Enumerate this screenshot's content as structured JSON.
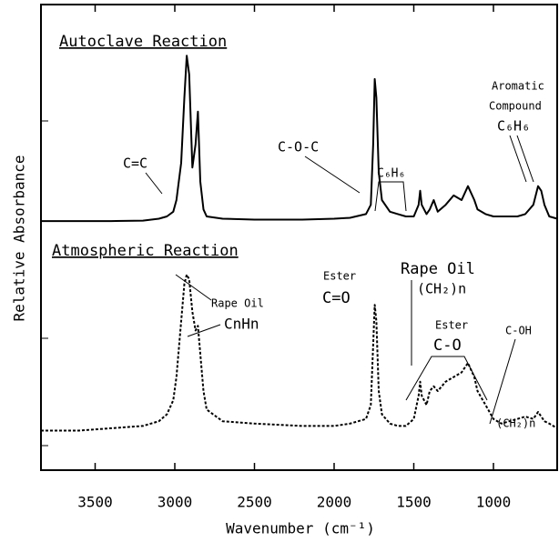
{
  "chart_data": {
    "type": "line",
    "xlabel": "Wavenumber (cm⁻¹)",
    "ylabel": "Relative Absorbance",
    "xlim": [
      3840,
      600
    ],
    "ylim": [
      0,
      100
    ],
    "xticks": [
      3500,
      3000,
      2500,
      2000,
      1500,
      1000
    ],
    "x": [
      3840,
      3600,
      3400,
      3200,
      3100,
      3050,
      3010,
      2990,
      2960,
      2940,
      2925,
      2910,
      2890,
      2870,
      2855,
      2840,
      2820,
      2800,
      2700,
      2500,
      2200,
      2000,
      1900,
      1800,
      1770,
      1755,
      1745,
      1735,
      1720,
      1700,
      1650,
      1600,
      1550,
      1500,
      1470,
      1460,
      1450,
      1420,
      1400,
      1375,
      1350,
      1300,
      1250,
      1200,
      1160,
      1120,
      1100,
      1050,
      1000,
      950,
      900,
      850,
      800,
      750,
      720,
      700,
      680,
      650,
      600
    ],
    "series": [
      {
        "name": "Autoclave Reaction",
        "color": "#000000",
        "style": "solid",
        "values": [
          53.5,
          53.5,
          53.5,
          53.6,
          54,
          54.5,
          55.5,
          58,
          66,
          80,
          89,
          85,
          65,
          70,
          77,
          62,
          56,
          54.5,
          54,
          53.8,
          53.8,
          54,
          54.2,
          55,
          57,
          70,
          84,
          80,
          64,
          58,
          55.5,
          55,
          54.5,
          54.5,
          57,
          60,
          57,
          55,
          56,
          58,
          55.5,
          57,
          59,
          58,
          61,
          58,
          56,
          55,
          54.5,
          54.5,
          54.5,
          54.5,
          55,
          57,
          61,
          60,
          57,
          54.5,
          54
        ]
      },
      {
        "name": "Atmospheric Reaction",
        "color": "#000000",
        "style": "dashed",
        "values": [
          8.5,
          8.5,
          9,
          9.5,
          10.5,
          12,
          15,
          20,
          32,
          40,
          42,
          41,
          34,
          30,
          31,
          25,
          17,
          13,
          10.5,
          10,
          9.5,
          9.5,
          10,
          11,
          14,
          27,
          35.5,
          32,
          17,
          12,
          10,
          9.5,
          9.5,
          11,
          16,
          19,
          16,
          14,
          17,
          18,
          17,
          19,
          20,
          21,
          23,
          20,
          17,
          14,
          11,
          10,
          10.5,
          11,
          11.5,
          11,
          12.5,
          11.5,
          10.5,
          10,
          9
        ]
      }
    ],
    "annotations": [
      "C=C",
      "C-O-C",
      "C₆H₆",
      "Aromatic",
      "Compound",
      "C₆H₆",
      "Ester",
      "C=O",
      "Rape Oil",
      "(CH₂)n",
      "Rape Oil",
      "CnHn",
      "Ester",
      "C-O",
      "C-OH",
      "(CH₂)n"
    ]
  }
}
